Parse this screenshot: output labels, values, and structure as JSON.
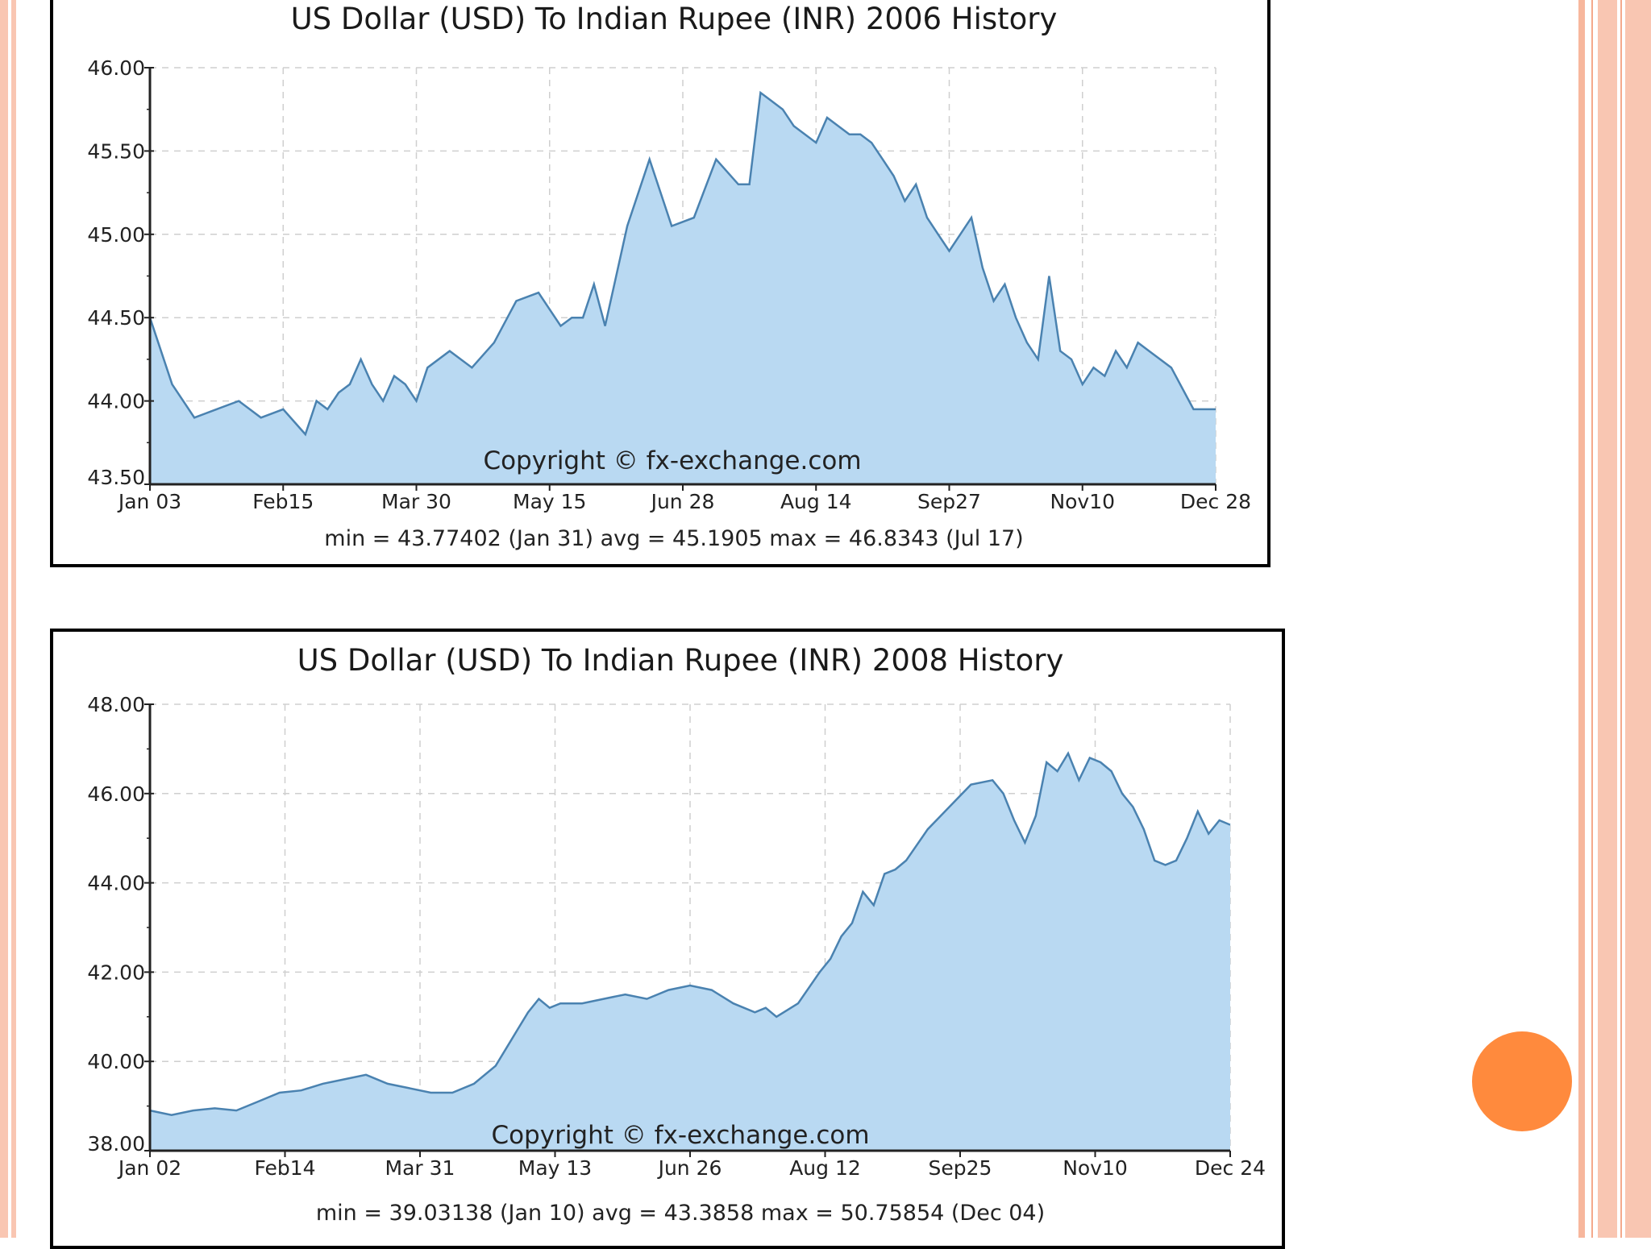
{
  "decor": {
    "accent": "#ff8a3d",
    "border_color": "#f9c6b2"
  },
  "chart_data": [
    {
      "type": "area",
      "title": "US Dollar (USD) To Indian Rupee (INR) 2006 History",
      "xlabel": "",
      "ylabel": "",
      "ylim": [
        43.5,
        46.0
      ],
      "yticks": [
        "46.00",
        "45.50",
        "45.00",
        "44.50",
        "44.00",
        "43.50"
      ],
      "xticks": [
        "Jan 03",
        "Feb15",
        "Mar 30",
        "May 15",
        "Jun 28",
        "Aug 14",
        "Sep27",
        "Nov10",
        "Dec 28"
      ],
      "grid": true,
      "annotation": "Copyright © fx-exchange.com",
      "stats": "min = 43.77402 (Jan 31)  avg = 45.1905  max = 46.8343 (Jul 17)",
      "fill_color": "#b9d9f2",
      "line_color": "#4a82b0",
      "x": [
        0,
        2,
        4,
        6,
        8,
        10,
        12,
        14,
        15,
        16,
        17,
        18,
        19,
        20,
        21,
        22,
        23,
        24,
        25,
        27,
        29,
        31,
        33,
        35,
        37,
        38,
        39,
        40,
        41,
        43,
        45,
        47,
        49,
        51,
        53,
        54,
        55,
        56,
        57,
        58,
        59,
        60,
        61,
        62,
        63,
        64,
        65,
        66,
        67,
        68,
        69,
        70,
        71,
        72,
        74,
        75,
        76,
        77,
        78,
        79,
        80,
        81,
        82,
        83,
        84,
        85,
        86,
        87,
        88,
        89,
        90,
        91,
        92,
        94,
        96
      ],
      "values": [
        44.5,
        44.1,
        43.9,
        43.95,
        44.0,
        43.9,
        43.95,
        43.8,
        44.0,
        43.95,
        44.05,
        44.1,
        44.25,
        44.1,
        44.0,
        44.15,
        44.1,
        44.0,
        44.2,
        44.3,
        44.2,
        44.35,
        44.6,
        44.65,
        44.45,
        44.5,
        44.5,
        44.7,
        44.45,
        45.05,
        45.45,
        45.05,
        45.1,
        45.45,
        45.3,
        45.3,
        45.85,
        45.8,
        45.75,
        45.65,
        45.6,
        45.55,
        45.7,
        45.65,
        45.6,
        45.6,
        45.55,
        45.45,
        45.35,
        45.2,
        45.3,
        45.1,
        45.0,
        44.9,
        45.1,
        44.8,
        44.6,
        44.7,
        44.5,
        44.35,
        44.25,
        44.75,
        44.3,
        44.25,
        44.1,
        44.2,
        44.15,
        44.3,
        44.2,
        44.35,
        44.3,
        44.25,
        44.2,
        43.95,
        43.95
      ]
    },
    {
      "type": "area",
      "title": "US Dollar (USD) To Indian Rupee (INR) 2008 History",
      "xlabel": "",
      "ylabel": "",
      "ylim": [
        38.0,
        48.0
      ],
      "yticks": [
        "48.00",
        "46.00",
        "44.00",
        "42.00",
        "40.00",
        "38.00"
      ],
      "xticks": [
        "Jan 02",
        "Feb14",
        "Mar 31",
        "May 13",
        "Jun 26",
        "Aug 12",
        "Sep25",
        "Nov10",
        "Dec 24"
      ],
      "grid": true,
      "annotation": "Copyright © fx-exchange.com",
      "stats": "min = 39.03138 (Jan 10)  avg = 43.3858  max = 50.75854 (Dec 04)",
      "fill_color": "#b9d9f2",
      "line_color": "#4a82b0",
      "x": [
        0,
        2,
        4,
        6,
        8,
        10,
        12,
        14,
        16,
        18,
        20,
        22,
        24,
        26,
        28,
        30,
        32,
        34,
        35,
        36,
        37,
        38,
        40,
        42,
        44,
        46,
        48,
        50,
        52,
        54,
        56,
        57,
        58,
        60,
        62,
        63,
        64,
        65,
        66,
        67,
        68,
        69,
        70,
        72,
        74,
        76,
        78,
        79,
        80,
        81,
        82,
        83,
        84,
        85,
        86,
        87,
        88,
        89,
        90,
        91,
        92,
        93,
        94,
        95,
        96,
        97,
        98,
        99,
        100
      ],
      "values": [
        38.9,
        38.8,
        38.9,
        38.95,
        38.9,
        39.1,
        39.3,
        39.35,
        39.5,
        39.6,
        39.7,
        39.5,
        39.4,
        39.3,
        39.3,
        39.5,
        39.9,
        40.7,
        41.1,
        41.4,
        41.2,
        41.3,
        41.3,
        41.4,
        41.5,
        41.4,
        41.6,
        41.7,
        41.6,
        41.3,
        41.1,
        41.2,
        41.0,
        41.3,
        42.0,
        42.3,
        42.8,
        43.1,
        43.8,
        43.5,
        44.2,
        44.3,
        44.5,
        45.2,
        45.7,
        46.2,
        46.3,
        46.0,
        45.4,
        44.9,
        45.5,
        46.7,
        46.5,
        46.9,
        46.3,
        46.8,
        46.7,
        46.5,
        46.0,
        45.7,
        45.2,
        44.5,
        44.4,
        44.5,
        45.0,
        45.6,
        45.1,
        45.4,
        45.3
      ]
    }
  ]
}
